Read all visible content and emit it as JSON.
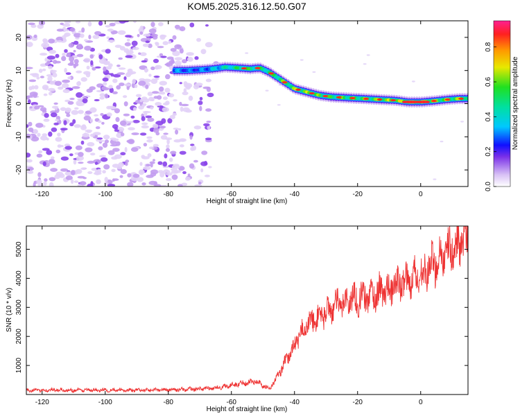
{
  "title": "KOM5.2025.316.12.50.G07",
  "chart_data": [
    {
      "type": "heatmap",
      "xlabel": "Height of straight line (km)",
      "ylabel": "Frequency (Hz)",
      "xlim": [
        -125,
        15
      ],
      "ylim": [
        -25,
        25
      ],
      "xticks": [
        -120,
        -100,
        -80,
        -60,
        -40,
        -20,
        0
      ],
      "yticks": [
        20,
        10,
        0,
        -10,
        -20
      ],
      "colorbar": {
        "label": "Normalized spectral amplitude",
        "range": [
          0.0,
          0.95
        ],
        "ticks": [
          0.0,
          0.2,
          0.4,
          0.6,
          0.8
        ]
      },
      "colors": {
        "noise": "#7a30e8",
        "ridge": "#ff2020"
      },
      "ridge": {
        "x": [
          -78,
          -74,
          -70,
          -66,
          -62,
          -58,
          -54,
          -51,
          -48,
          -44,
          -40,
          -36,
          -32,
          -28,
          -24,
          -20,
          -16,
          -12,
          -8,
          -4,
          0,
          4,
          8,
          12,
          15
        ],
        "freq": [
          10,
          10,
          10.2,
          10.5,
          11,
          10.8,
          10.5,
          10.8,
          9.5,
          7,
          4.5,
          3.5,
          2.5,
          2,
          1.8,
          1.6,
          1.4,
          1.2,
          1,
          0.5,
          0.5,
          0.8,
          1.2,
          1.5,
          1.5
        ],
        "amplitude": [
          0.45,
          0.4,
          0.4,
          0.5,
          0.6,
          0.7,
          0.75,
          0.7,
          0.75,
          0.8,
          0.85,
          0.85,
          0.8,
          0.75,
          0.8,
          0.8,
          0.8,
          0.85,
          0.85,
          0.95,
          0.95,
          0.9,
          0.85,
          0.85,
          0.85
        ]
      }
    },
    {
      "type": "line",
      "xlabel": "Height of straight line (km)",
      "ylabel": "SNR (10 * v/v)",
      "xlim": [
        -125,
        15
      ],
      "ylim": [
        0,
        5800
      ],
      "xticks": [
        -120,
        -100,
        -80,
        -60,
        -40,
        -20,
        0
      ],
      "yticks": [
        1000,
        2000,
        3000,
        4000,
        5000
      ],
      "color": "#ee3333",
      "series": [
        {
          "name": "SNR",
          "x": [
            -125,
            -110,
            -90,
            -75,
            -65,
            -60,
            -55,
            -52,
            -50,
            -48,
            -46,
            -44,
            -42,
            -40,
            -38,
            -36,
            -34,
            -32,
            -30,
            -28,
            -26,
            -24,
            -22,
            -20,
            -18,
            -16,
            -14,
            -12,
            -10,
            -8,
            -6,
            -4,
            -2,
            0,
            2,
            4,
            6,
            8,
            10,
            12,
            15
          ],
          "y": [
            150,
            150,
            150,
            170,
            220,
            320,
            420,
            450,
            300,
            200,
            500,
            900,
            1300,
            1700,
            2100,
            2400,
            2550,
            2700,
            2850,
            3000,
            3100,
            3200,
            3300,
            3300,
            3350,
            3400,
            3500,
            3550,
            3650,
            3750,
            3850,
            3950,
            4050,
            4100,
            4300,
            4500,
            4700,
            4850,
            5000,
            5150,
            5400
          ]
        }
      ]
    }
  ]
}
